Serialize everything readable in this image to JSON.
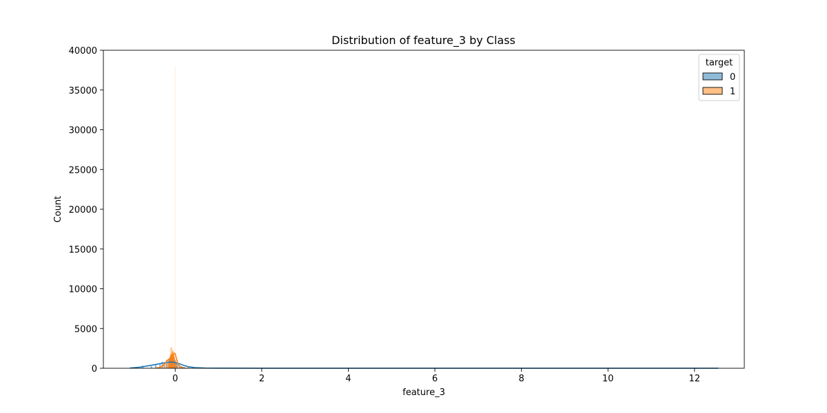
{
  "chart_data": {
    "type": "histogram",
    "title": "Distribution of feature_3 by Class",
    "xlabel": "feature_3",
    "ylabel": "Count",
    "xlim": [
      -1.66,
      13.15
    ],
    "ylim": [
      0,
      40000
    ],
    "xticks": [
      0,
      2,
      4,
      6,
      8,
      10,
      12
    ],
    "xtick_labels": [
      "0",
      "2",
      "4",
      "6",
      "8",
      "10",
      "12"
    ],
    "yticks": [
      0,
      5000,
      10000,
      15000,
      20000,
      25000,
      30000,
      35000,
      40000
    ],
    "ytick_labels": [
      "0",
      "5000",
      "10000",
      "15000",
      "20000",
      "25000",
      "30000",
      "35000",
      "40000"
    ],
    "grid": false,
    "legend": {
      "title": "target",
      "position": "top-right",
      "entries": [
        {
          "label": "0",
          "color": "#1f77b4"
        },
        {
          "label": "1",
          "color": "#ff7f0e"
        }
      ]
    },
    "series": [
      {
        "class": "0",
        "color": "#1f77b4",
        "hist_x": [
          -0.75,
          -0.55,
          -0.45,
          -0.35,
          -0.3,
          -0.25,
          -0.2,
          -0.15,
          -0.12,
          -0.1,
          -0.08,
          -0.05,
          -0.03,
          0.0,
          0.02,
          0.05,
          0.1,
          0.15,
          0.2,
          0.3
        ],
        "hist_y": [
          300,
          250,
          450,
          550,
          800,
          700,
          1000,
          1100,
          1300,
          1400,
          1700,
          1600,
          1300,
          1000,
          700,
          550,
          400,
          250,
          150,
          80
        ],
        "kde_x": [
          -1.05,
          -0.8,
          -0.6,
          -0.45,
          -0.3,
          -0.2,
          -0.1,
          0.0,
          0.1,
          0.2,
          0.3,
          0.45,
          0.7,
          1.0,
          2.0,
          4.0,
          6.0,
          8.0,
          10.0,
          12.55
        ],
        "kde_y": [
          30,
          150,
          330,
          480,
          640,
          730,
          780,
          720,
          560,
          360,
          200,
          80,
          30,
          15,
          8,
          5,
          5,
          5,
          5,
          5
        ]
      },
      {
        "class": "1",
        "color": "#ff7f0e",
        "hist_x": [
          -0.3,
          -0.25,
          -0.2,
          -0.17,
          -0.15,
          -0.13,
          -0.12,
          -0.11,
          -0.1,
          -0.09,
          -0.08,
          -0.07,
          -0.06,
          -0.05,
          -0.04,
          -0.03,
          -0.02,
          -0.01,
          0.0,
          0.02,
          0.05,
          0.1
        ],
        "hist_y": [
          200,
          350,
          500,
          700,
          900,
          1200,
          1400,
          1600,
          1700,
          2600,
          1800,
          2000,
          1700,
          2200,
          1800,
          1500,
          1300,
          1000,
          38000,
          600,
          300,
          120
        ],
        "kde_x": [
          -0.45,
          -0.35,
          -0.28,
          -0.22,
          -0.18,
          -0.15,
          -0.12,
          -0.1,
          -0.08,
          -0.06,
          -0.04,
          -0.02,
          0.0,
          0.03,
          0.06,
          0.1,
          0.15,
          0.25
        ],
        "kde_y": [
          20,
          120,
          350,
          700,
          1000,
          1150,
          1250,
          1300,
          1400,
          1500,
          1700,
          1900,
          1800,
          1200,
          600,
          250,
          80,
          10
        ]
      }
    ]
  }
}
